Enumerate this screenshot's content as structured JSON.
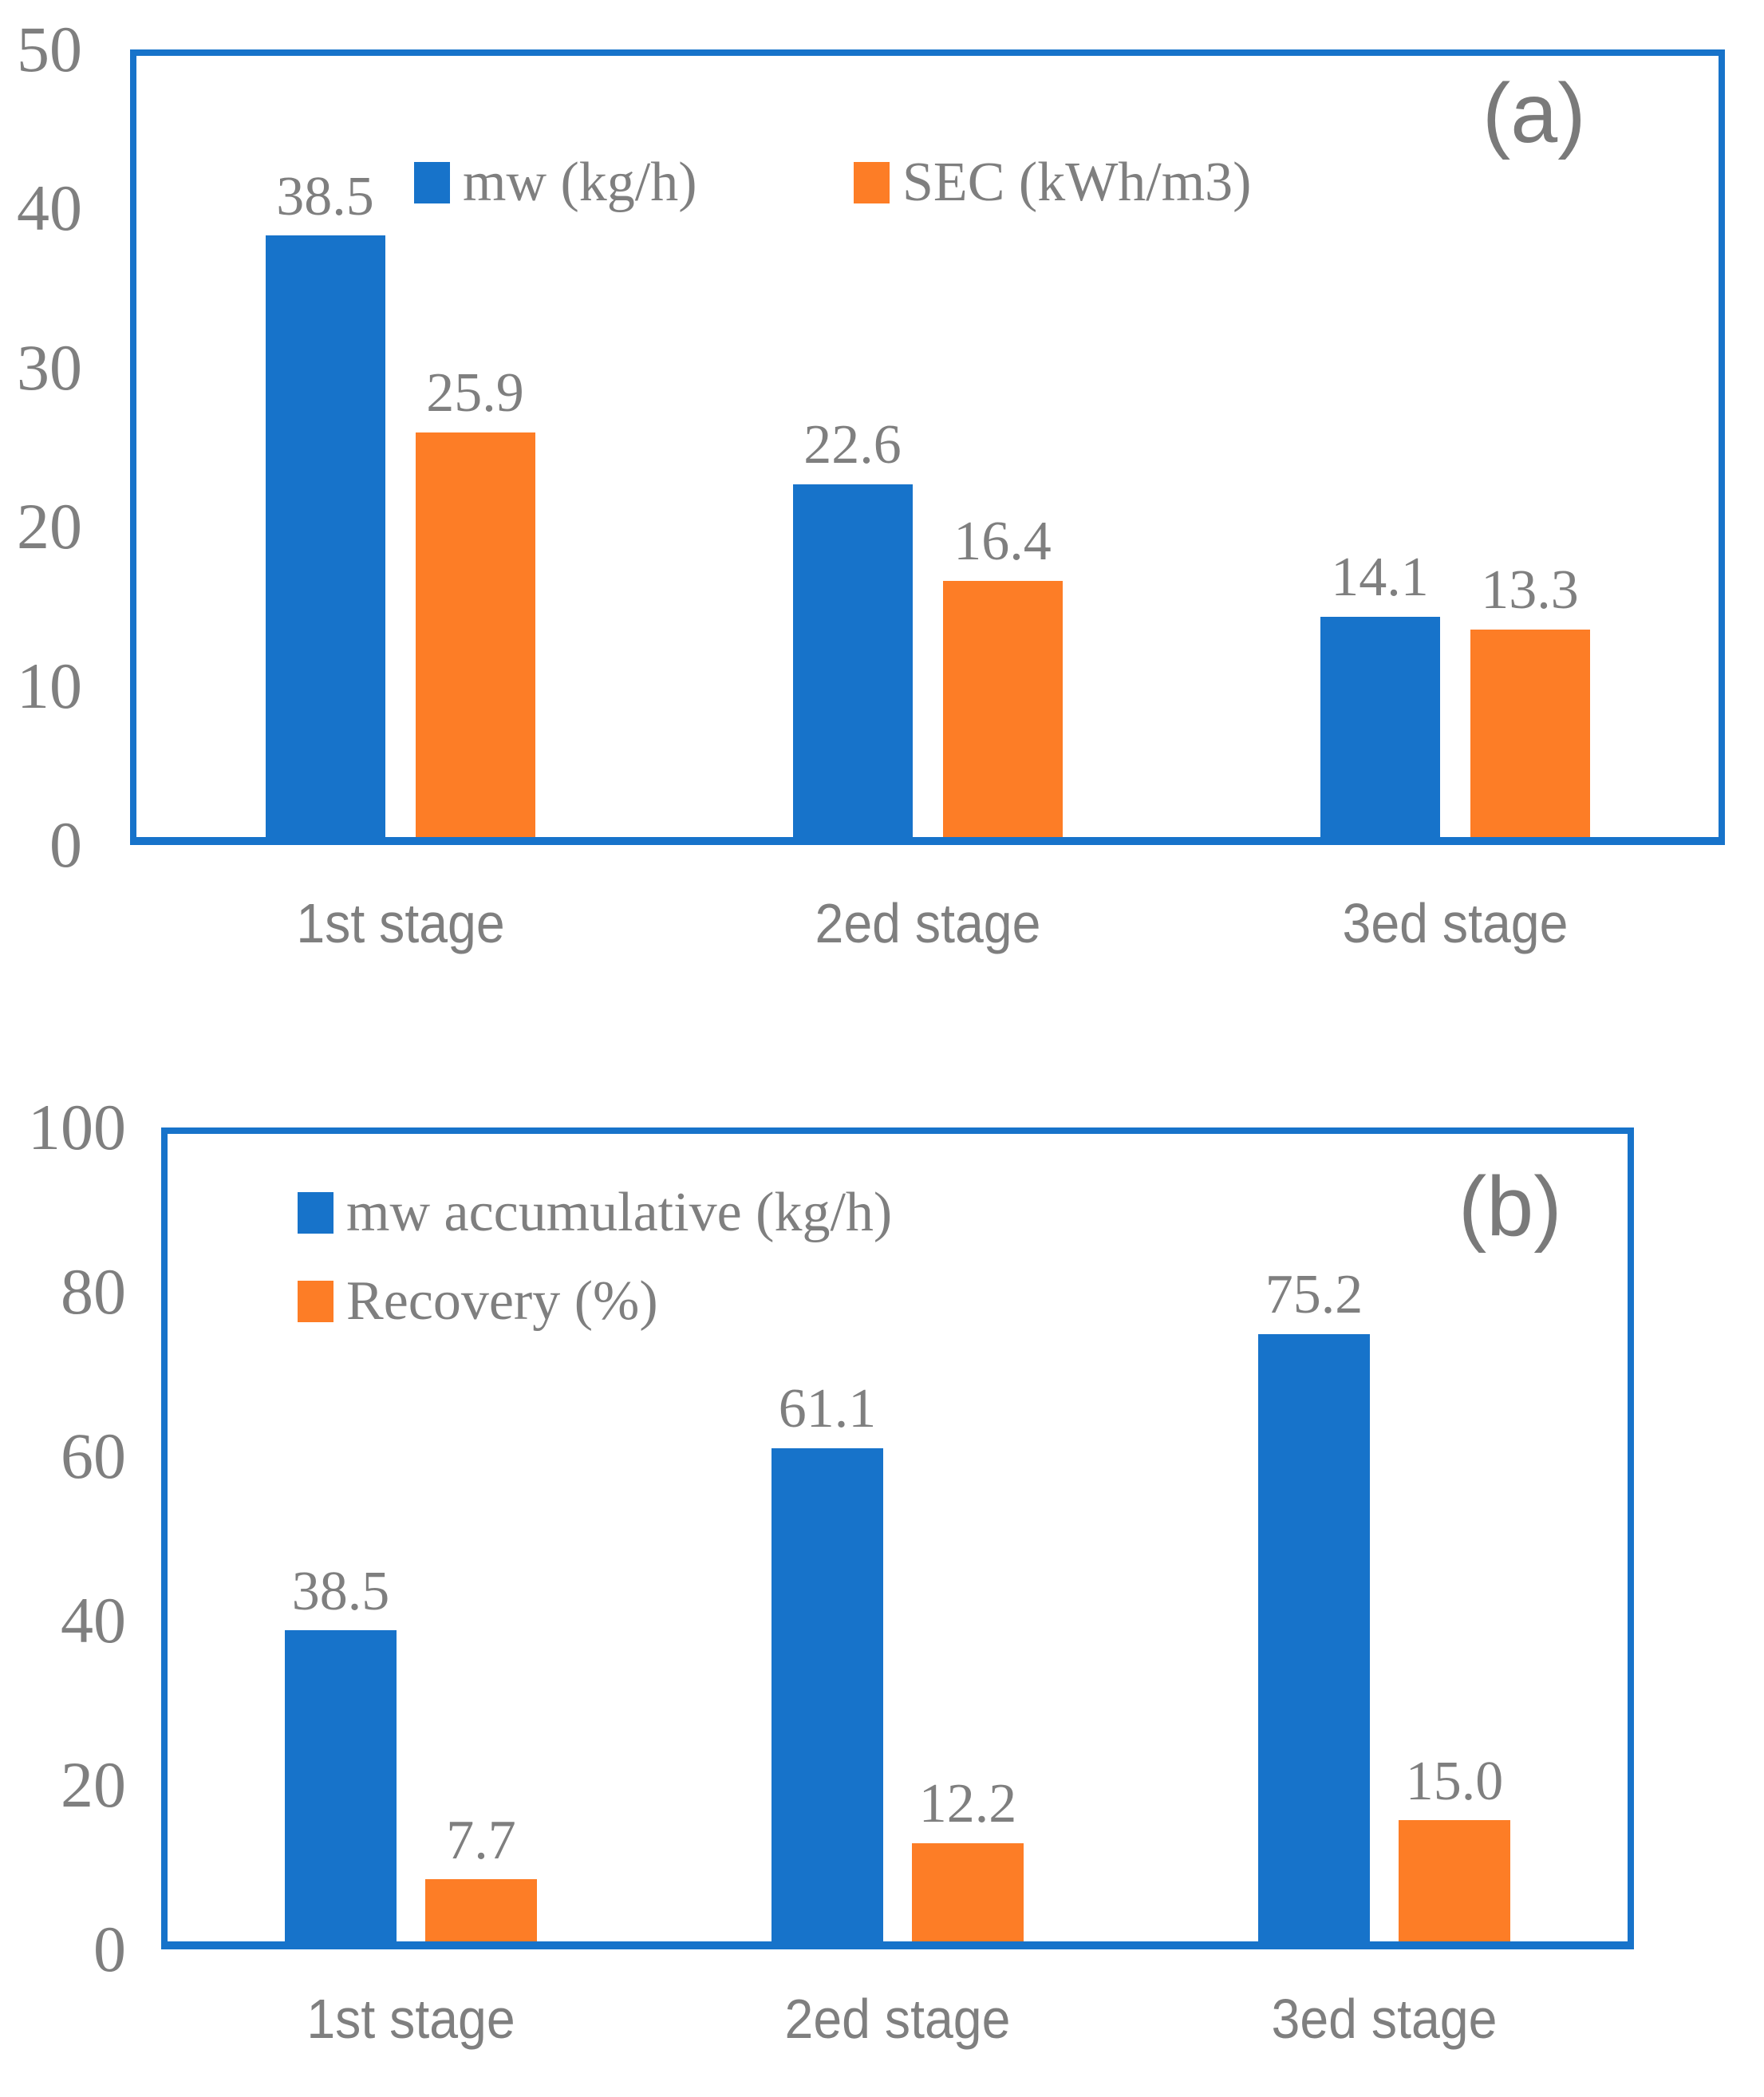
{
  "styles": {
    "series_blue": "#1773CA",
    "series_orange": "#FD7D26",
    "frame_blue": "#1773CA",
    "text_gray": "#7F7F7F"
  },
  "chart_data": [
    {
      "type": "bar",
      "panel_label": "(a)",
      "categories": [
        "1st stage",
        "2ed stage",
        "3ed stage"
      ],
      "series": [
        {
          "name": "mw (kg/h)",
          "color": "#1773CA",
          "values": [
            38.5,
            22.6,
            14.1
          ],
          "labels": [
            "38.5",
            "22.6",
            "14.1"
          ]
        },
        {
          "name": "SEC (kWh/m3)",
          "color": "#FD7D26",
          "values": [
            25.9,
            16.4,
            13.3
          ],
          "labels": [
            "25.9",
            "16.4",
            "13.3"
          ]
        }
      ],
      "ylim": [
        0,
        50
      ],
      "yticks": [
        "0",
        "10",
        "20",
        "30",
        "40",
        "50"
      ],
      "xlabel": "",
      "ylabel": "",
      "grid": false,
      "legend_position": "inside-top-center",
      "legend_layout": "horizontal",
      "data_labels": true
    },
    {
      "type": "bar",
      "panel_label": "(b)",
      "categories": [
        "1st stage",
        "2ed stage",
        "3ed stage"
      ],
      "series": [
        {
          "name": "mw accumulative (kg/h)",
          "color": "#1773CA",
          "values": [
            38.5,
            61.1,
            75.2
          ],
          "labels": [
            "38.5",
            "61.1",
            "75.2"
          ]
        },
        {
          "name": "Recovery (%)",
          "color": "#FD7D26",
          "values": [
            7.7,
            12.2,
            15.0
          ],
          "labels": [
            "7.7",
            "12.2",
            "15.0"
          ]
        }
      ],
      "ylim": [
        0,
        100
      ],
      "yticks": [
        "0",
        "20",
        "40",
        "60",
        "80",
        "100"
      ],
      "xlabel": "",
      "ylabel": "",
      "grid": false,
      "legend_position": "inside-top-left",
      "legend_layout": "vertical",
      "data_labels": true
    }
  ]
}
